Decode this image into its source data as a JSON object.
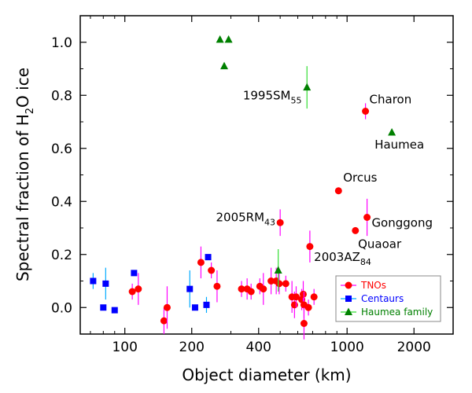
{
  "chart_data": {
    "type": "scatter",
    "xscale": "log",
    "xlabel": "Object diameter (km)",
    "ylabel_parts": [
      "Spectral fraction of H",
      "2",
      "O ice"
    ],
    "xlim": [
      63,
      3000
    ],
    "ylim": [
      -0.1,
      1.1
    ],
    "xticks": [
      100,
      200,
      400,
      1000,
      2000
    ],
    "yticks": [
      0.0,
      0.2,
      0.4,
      0.6,
      0.8,
      1.0
    ],
    "xtick_labels": [
      "100",
      "200",
      "400",
      "1000",
      "2000"
    ],
    "ytick_labels": [
      "0.0",
      "0.2",
      "0.4",
      "0.6",
      "0.8",
      "1.0"
    ],
    "series": [
      {
        "name": "TNOs",
        "color": "#ff0000",
        "errcolor": "#ff00ff",
        "marker": "circle",
        "points": [
          {
            "x": 108,
            "y": 0.06,
            "err": 0.03
          },
          {
            "x": 115,
            "y": 0.07,
            "err": 0.06
          },
          {
            "x": 150,
            "y": -0.05,
            "err": 0.05
          },
          {
            "x": 155,
            "y": 0.0,
            "err": 0.08
          },
          {
            "x": 220,
            "y": 0.17,
            "err": 0.06
          },
          {
            "x": 245,
            "y": 0.14,
            "err": 0.03
          },
          {
            "x": 260,
            "y": 0.08,
            "err": 0.06
          },
          {
            "x": 335,
            "y": 0.07,
            "err": 0.03
          },
          {
            "x": 355,
            "y": 0.07,
            "err": 0.04
          },
          {
            "x": 370,
            "y": 0.06,
            "err": 0.03
          },
          {
            "x": 405,
            "y": 0.08,
            "err": 0.03
          },
          {
            "x": 420,
            "y": 0.07,
            "err": 0.06
          },
          {
            "x": 455,
            "y": 0.1,
            "err": 0.05
          },
          {
            "x": 480,
            "y": 0.1,
            "err": 0.05
          },
          {
            "x": 495,
            "y": 0.09,
            "err": 0.04
          },
          {
            "x": 500,
            "y": 0.32,
            "err": 0.05
          },
          {
            "x": 530,
            "y": 0.09,
            "err": 0.03
          },
          {
            "x": 565,
            "y": 0.04,
            "err": 0.06
          },
          {
            "x": 580,
            "y": 0.01,
            "err": 0.05
          },
          {
            "x": 590,
            "y": 0.04,
            "err": 0.04
          },
          {
            "x": 625,
            "y": 0.03,
            "err": 0.04
          },
          {
            "x": 635,
            "y": 0.05,
            "err": 0.05
          },
          {
            "x": 640,
            "y": 0.01,
            "err": 0.05
          },
          {
            "x": 640,
            "y": -0.06,
            "err": 0.06
          },
          {
            "x": 670,
            "y": 0.0,
            "err": 0.03
          },
          {
            "x": 680,
            "y": 0.23,
            "err": 0.06
          },
          {
            "x": 710,
            "y": 0.04,
            "err": 0.03
          },
          {
            "x": 915,
            "y": 0.44,
            "err": 0.0
          },
          {
            "x": 1090,
            "y": 0.29,
            "err": 0.0
          },
          {
            "x": 1230,
            "y": 0.34,
            "err": 0.07
          },
          {
            "x": 1210,
            "y": 0.74,
            "err": 0.03
          }
        ]
      },
      {
        "name": "Centaurs",
        "color": "#0000ff",
        "errcolor": "#00aaff",
        "marker": "square",
        "points": [
          {
            "x": 72,
            "y": 0.1,
            "err": 0.03
          },
          {
            "x": 80,
            "y": 0.0,
            "err": 0.0
          },
          {
            "x": 82,
            "y": 0.09,
            "err": 0.06
          },
          {
            "x": 90,
            "y": -0.01,
            "err": 0.0
          },
          {
            "x": 110,
            "y": 0.13,
            "err": 0.0
          },
          {
            "x": 196,
            "y": 0.07,
            "err": 0.07
          },
          {
            "x": 207,
            "y": 0.0,
            "err": 0.0
          },
          {
            "x": 233,
            "y": 0.01,
            "err": 0.03
          },
          {
            "x": 237,
            "y": 0.19,
            "err": 0.0
          }
        ]
      },
      {
        "name": "Haumea family",
        "color": "#008000",
        "errcolor": "#33dd33",
        "marker": "triangle",
        "points": [
          {
            "x": 268,
            "y": 1.01,
            "err": 0.0
          },
          {
            "x": 280,
            "y": 0.91,
            "err": 0.0
          },
          {
            "x": 293,
            "y": 1.01,
            "err": 0.0
          },
          {
            "x": 490,
            "y": 0.14,
            "err": 0.08
          },
          {
            "x": 660,
            "y": 0.83,
            "err": 0.08
          },
          {
            "x": 1590,
            "y": 0.66,
            "err": 0.0
          }
        ]
      }
    ],
    "annotations": [
      {
        "name": "1995SM55",
        "base": "1995SM",
        "sub": "55",
        "x": 340,
        "y": 0.785
      },
      {
        "name": "Charon",
        "base": "Charon",
        "sub": "",
        "x": 1260,
        "y": 0.77
      },
      {
        "name": "Haumea",
        "base": "Haumea",
        "sub": "",
        "x": 1330,
        "y": 0.6
      },
      {
        "name": "Orcus",
        "base": "Orcus",
        "sub": "",
        "x": 960,
        "y": 0.475
      },
      {
        "name": "2005RM43",
        "base": "2005RM",
        "sub": "43",
        "x": 257,
        "y": 0.325
      },
      {
        "name": "Gonggong",
        "base": "Gonggong",
        "sub": "",
        "x": 1290,
        "y": 0.305
      },
      {
        "name": "Quaoar",
        "base": "Quaoar",
        "sub": "",
        "x": 1120,
        "y": 0.225
      },
      {
        "name": "2003AZ84",
        "base": "2003AZ",
        "sub": "84",
        "x": 710,
        "y": 0.175
      }
    ],
    "legend": {
      "location": "lower-right",
      "entries": [
        {
          "label": "TNOs",
          "marker": "circle",
          "color": "#ff0000",
          "linecolor": "#ff00ff"
        },
        {
          "label": "Centaurs",
          "marker": "square",
          "color": "#0000ff",
          "linecolor": "#00aaff"
        },
        {
          "label": "Haumea family",
          "marker": "triangle",
          "color": "#008000",
          "linecolor": "#33dd33"
        }
      ]
    }
  }
}
